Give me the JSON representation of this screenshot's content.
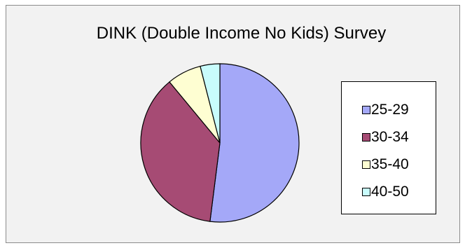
{
  "chart_data": {
    "type": "pie",
    "title": "DINK (Double Income No Kids) Survey",
    "categories": [
      "25-29",
      "30-34",
      "35-40",
      "40-50"
    ],
    "values": [
      52,
      37,
      7,
      4
    ],
    "colors": [
      "#a4a8f8",
      "#a64b74",
      "#fefed2",
      "#c8fcfc"
    ],
    "start_angle_deg": 0,
    "direction": "clockwise",
    "legend_position": "right"
  },
  "colors": {
    "chart_background": "#f2f2f2",
    "slice_border": "#000000"
  }
}
